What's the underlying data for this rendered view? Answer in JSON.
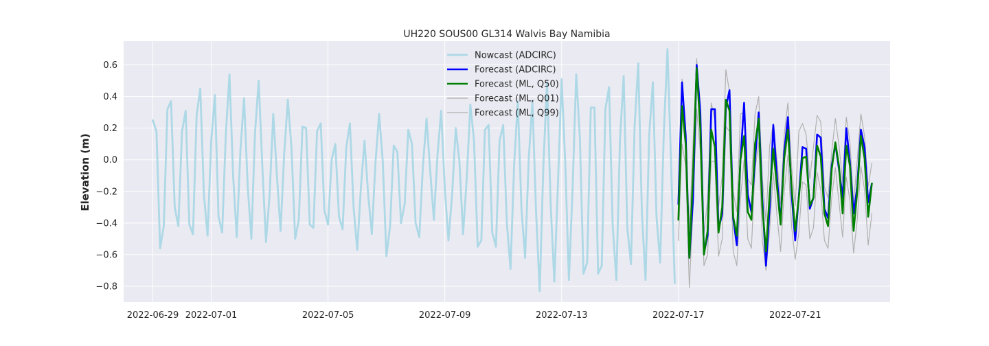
{
  "chart_data": {
    "type": "line",
    "title": "UH220 SOUS00 GL314 Walvis Bay Namibia",
    "xlabel": "",
    "ylabel": "Elevation (m)",
    "xlim": [
      "2022-06-28T00:00",
      "2022-07-24T06:00"
    ],
    "ylim": [
      -0.9,
      0.75
    ],
    "x_ticks": [
      "2022-06-29",
      "2022-07-01",
      "2022-07-05",
      "2022-07-09",
      "2022-07-13",
      "2022-07-17",
      "2022-07-21"
    ],
    "y_ticks": [
      0.6,
      0.4,
      0.2,
      0.0,
      -0.2,
      -0.4,
      -0.6,
      -0.8
    ],
    "y_tick_labels": [
      "0.6",
      "0.4",
      "0.2",
      "0.0",
      "−0.2",
      "−0.4",
      "−0.6",
      "−0.8"
    ],
    "grid": true,
    "legend_position": "top-center",
    "series": [
      {
        "name": "Nowcast (ADCIRC)",
        "color": "#add8e6",
        "start": "2022-06-29T00:00",
        "step_hours": 3,
        "values": [
          0.25,
          0.18,
          -0.56,
          -0.42,
          0.32,
          0.37,
          -0.3,
          -0.42,
          0.18,
          0.31,
          -0.41,
          -0.47,
          0.28,
          0.45,
          -0.22,
          -0.48,
          0.12,
          0.41,
          -0.36,
          -0.46,
          0.16,
          0.54,
          -0.1,
          -0.49,
          0.06,
          0.39,
          -0.17,
          -0.5,
          0.17,
          0.5,
          -0.04,
          -0.52,
          -0.22,
          0.29,
          -0.1,
          -0.45,
          0.04,
          0.38,
          0.07,
          -0.5,
          -0.38,
          0.21,
          0.2,
          -0.41,
          -0.43,
          0.18,
          0.23,
          -0.32,
          -0.41,
          0.0,
          0.1,
          -0.36,
          -0.44,
          0.08,
          0.23,
          -0.3,
          -0.57,
          -0.18,
          0.12,
          -0.22,
          -0.47,
          -0.02,
          0.29,
          -0.01,
          -0.61,
          -0.42,
          0.09,
          0.05,
          -0.4,
          -0.28,
          0.19,
          0.1,
          -0.4,
          -0.49,
          -0.04,
          0.26,
          -0.07,
          -0.38,
          0.03,
          0.31,
          -0.18,
          -0.51,
          -0.22,
          0.2,
          -0.01,
          -0.47,
          -0.12,
          0.35,
          0.12,
          -0.55,
          -0.51,
          0.19,
          0.22,
          -0.46,
          -0.55,
          0.12,
          0.22,
          -0.4,
          -0.69,
          -0.03,
          0.37,
          -0.31,
          -0.62,
          0.01,
          0.37,
          -0.33,
          -0.83,
          -0.04,
          0.49,
          -0.28,
          -0.77,
          -0.15,
          0.51,
          -0.02,
          -0.76,
          -0.19,
          0.54,
          0.14,
          -0.72,
          -0.65,
          0.33,
          0.33,
          -0.72,
          -0.67,
          0.32,
          0.46,
          -0.42,
          -0.76,
          0.13,
          0.53,
          -0.43,
          -0.66,
          0.21,
          0.61,
          -0.34,
          -0.76,
          0.16,
          0.49,
          -0.36,
          -0.65,
          0.17,
          0.7,
          -0.03,
          -0.78
        ]
      },
      {
        "name": "Forecast (ADCIRC)",
        "color": "#0000ff",
        "start": "2022-07-17T00:00",
        "step_hours": 3,
        "values": [
          -0.28,
          0.49,
          0.15,
          -0.62,
          -0.25,
          0.6,
          0.3,
          -0.59,
          -0.48,
          0.32,
          0.32,
          -0.44,
          -0.34,
          0.33,
          0.44,
          -0.37,
          -0.54,
          0.0,
          0.36,
          -0.22,
          -0.33,
          0.0,
          0.3,
          -0.25,
          -0.67,
          -0.3,
          0.22,
          -0.11,
          -0.4,
          0.05,
          0.27,
          -0.21,
          -0.51,
          -0.23,
          0.08,
          0.07,
          -0.31,
          -0.24,
          0.16,
          0.14,
          -0.31,
          -0.37,
          -0.04,
          0.1,
          -0.06,
          -0.24,
          0.2,
          -0.02,
          -0.34,
          -0.17,
          0.19,
          0.08,
          -0.27,
          -0.15
        ]
      },
      {
        "name": "Forecast (ML, Q50)",
        "color": "#008000",
        "start": "2022-07-17T00:00",
        "step_hours": 3,
        "values": [
          -0.38,
          0.34,
          0.1,
          -0.62,
          -0.1,
          0.58,
          0.2,
          -0.6,
          -0.45,
          0.19,
          0.08,
          -0.46,
          -0.3,
          0.38,
          0.31,
          -0.36,
          -0.48,
          0.0,
          0.15,
          -0.33,
          -0.38,
          0.1,
          0.26,
          -0.3,
          -0.58,
          -0.22,
          0.07,
          -0.17,
          -0.41,
          0.01,
          0.19,
          -0.17,
          -0.45,
          -0.24,
          0.01,
          0.02,
          -0.29,
          -0.24,
          0.09,
          0.02,
          -0.34,
          -0.42,
          -0.06,
          0.11,
          -0.04,
          -0.34,
          0.09,
          -0.04,
          -0.45,
          -0.2,
          0.15,
          0.01,
          -0.36,
          -0.15
        ]
      },
      {
        "name": "Forecast (ML, Q01)",
        "color": "#b0b0b0",
        "start": "2022-07-17T00:00",
        "step_hours": 3,
        "values": [
          -0.51,
          0.1,
          -0.04,
          -0.81,
          -0.3,
          0.32,
          0.05,
          -0.67,
          -0.6,
          -0.01,
          -0.01,
          -0.61,
          -0.5,
          0.21,
          0.18,
          -0.58,
          -0.67,
          -0.25,
          0.0,
          -0.5,
          -0.56,
          -0.06,
          0.11,
          -0.51,
          -0.7,
          -0.45,
          -0.08,
          -0.35,
          -0.58,
          -0.2,
          0.03,
          -0.42,
          -0.63,
          -0.46,
          -0.14,
          -0.16,
          -0.5,
          -0.43,
          -0.08,
          -0.19,
          -0.51,
          -0.56,
          -0.24,
          -0.05,
          -0.27,
          -0.49,
          -0.11,
          -0.26,
          -0.59,
          -0.38,
          -0.04,
          -0.19,
          -0.54,
          -0.34
        ]
      },
      {
        "name": "Forecast (ML, Q99)",
        "color": "#b0b0b0",
        "start": "2022-07-17T00:00",
        "step_hours": 3,
        "values": [
          -0.2,
          0.51,
          0.2,
          -0.44,
          0.1,
          0.64,
          0.35,
          -0.47,
          -0.25,
          0.36,
          0.25,
          -0.3,
          -0.1,
          0.57,
          0.43,
          -0.2,
          -0.33,
          0.29,
          0.3,
          -0.12,
          -0.16,
          0.29,
          0.4,
          -0.12,
          -0.39,
          0.09,
          0.23,
          0.0,
          -0.28,
          0.16,
          0.36,
          -0.04,
          -0.29,
          0.18,
          0.23,
          0.16,
          -0.12,
          0.08,
          0.28,
          0.24,
          -0.17,
          -0.24,
          0.05,
          0.26,
          0.09,
          -0.14,
          0.27,
          0.11,
          -0.28,
          0.0,
          0.29,
          0.15,
          -0.17,
          -0.02
        ]
      }
    ]
  }
}
